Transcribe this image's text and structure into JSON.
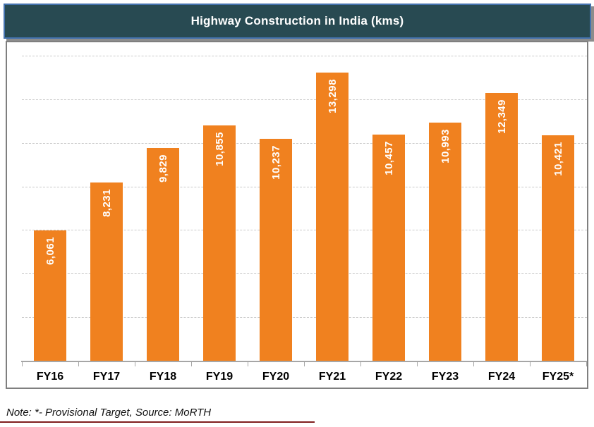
{
  "title_bar": {
    "text": "Highway Construction in India (kms)"
  },
  "chart_data": {
    "type": "bar",
    "title": "Highway Construction in India (kms)",
    "categories": [
      "FY16",
      "FY17",
      "FY18",
      "FY19",
      "FY20",
      "FY21",
      "FY22",
      "FY23",
      "FY24",
      "FY25*"
    ],
    "values": [
      6061,
      8231,
      9829,
      10855,
      10237,
      13298,
      10457,
      10993,
      12349,
      10421
    ],
    "value_labels": [
      "6,061",
      "8,231",
      "9,829",
      "10,855",
      "10,237",
      "13,298",
      "10,457",
      "10,993",
      "12,349",
      "10,421"
    ],
    "xlabel": "",
    "ylabel": "",
    "ylim": [
      0,
      14000
    ],
    "gridline_step": 2000,
    "grid": "horizontal-dashed",
    "legend": "none",
    "bar_color": "#F0811F",
    "value_label_color": "#FFFFFF",
    "value_label_rotation": "vertical-bottom-to-top"
  },
  "note": {
    "text": "Note: *- Provisional Target, Source: MoRTH"
  },
  "colors": {
    "title_background": "#284A52",
    "title_border": "#4472AE",
    "title_text": "#FFFFFF",
    "chart_border": "#7F7F7F",
    "gridline": "#C9C9C9",
    "axis_line": "#A6A6A6",
    "category_text": "#000000",
    "note_underline": "#7F1D1D"
  }
}
